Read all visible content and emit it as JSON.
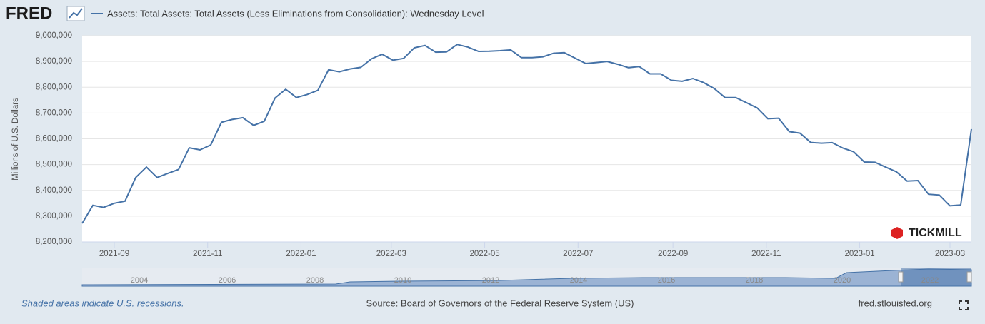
{
  "chart_data": {
    "type": "line",
    "logo": "FRED",
    "watermark": "TICKMILL",
    "y_label": "Millions of U.S. Dollars",
    "note": "Shaded areas indicate U.S. recessions.",
    "source": "Source: Board of Governors of the Federal Reserve System (US)",
    "site": "fred.stlouisfed.org",
    "navigator_labels": [
      "2004",
      "2006",
      "2008",
      "2010",
      "2012",
      "2014",
      "2016",
      "2018",
      "2020",
      "2022"
    ],
    "x": [
      "2021-08-11",
      "2021-08-18",
      "2021-08-25",
      "2021-09-01",
      "2021-09-08",
      "2021-09-15",
      "2021-09-22",
      "2021-09-29",
      "2021-10-06",
      "2021-10-13",
      "2021-10-20",
      "2021-10-27",
      "2021-11-03",
      "2021-11-10",
      "2021-11-17",
      "2021-11-24",
      "2021-12-01",
      "2021-12-08",
      "2021-12-15",
      "2021-12-22",
      "2021-12-29",
      "2022-01-05",
      "2022-01-12",
      "2022-01-19",
      "2022-01-26",
      "2022-02-02",
      "2022-02-09",
      "2022-02-16",
      "2022-02-23",
      "2022-03-02",
      "2022-03-09",
      "2022-03-16",
      "2022-03-23",
      "2022-03-30",
      "2022-04-06",
      "2022-04-13",
      "2022-04-20",
      "2022-04-27",
      "2022-05-04",
      "2022-05-11",
      "2022-05-18",
      "2022-05-25",
      "2022-06-01",
      "2022-06-08",
      "2022-06-15",
      "2022-06-22",
      "2022-06-29",
      "2022-07-06",
      "2022-07-13",
      "2022-07-20",
      "2022-07-27",
      "2022-08-03",
      "2022-08-10",
      "2022-08-17",
      "2022-08-24",
      "2022-08-31",
      "2022-09-07",
      "2022-09-14",
      "2022-09-21",
      "2022-09-28",
      "2022-10-05",
      "2022-10-12",
      "2022-10-19",
      "2022-10-26",
      "2022-11-02",
      "2022-11-09",
      "2022-11-16",
      "2022-11-23",
      "2022-11-30",
      "2022-12-07",
      "2022-12-14",
      "2022-12-21",
      "2022-12-28",
      "2023-01-04",
      "2023-01-11",
      "2023-01-18",
      "2023-01-25",
      "2023-02-01",
      "2023-02-08",
      "2023-02-15",
      "2023-02-22",
      "2023-03-01",
      "2023-03-08",
      "2023-03-15"
    ],
    "series": [
      {
        "name": "Assets: Total Assets: Total Assets (Less Eliminations from Consolidation): Wednesday Level",
        "color": "#4572a7",
        "values": [
          8272000,
          8342000,
          8334000,
          8350000,
          8358000,
          8450000,
          8490000,
          8450000,
          8466000,
          8481000,
          8565000,
          8557000,
          8576000,
          8664000,
          8675000,
          8682000,
          8652000,
          8668000,
          8758000,
          8792000,
          8760000,
          8772000,
          8788000,
          8868000,
          8860000,
          8871000,
          8877000,
          8910000,
          8928000,
          8905000,
          8912000,
          8953000,
          8962000,
          8936000,
          8937000,
          8966000,
          8956000,
          8939000,
          8940000,
          8942000,
          8945000,
          8915000,
          8915000,
          8918000,
          8932000,
          8934000,
          8913000,
          8892000,
          8896000,
          8900000,
          8889000,
          8876000,
          8880000,
          8852000,
          8852000,
          8827000,
          8823000,
          8834000,
          8818000,
          8795000,
          8760000,
          8760000,
          8740000,
          8720000,
          8678000,
          8680000,
          8628000,
          8622000,
          8586000,
          8583000,
          8585000,
          8564000,
          8550000,
          8510000,
          8509000,
          8490000,
          8472000,
          8436000,
          8438000,
          8385000,
          8382000,
          8340000,
          8343000,
          8638000
        ]
      }
    ],
    "xlim": [
      "2021-08-11",
      "2023-03-15"
    ],
    "xticks": [
      "2021-09",
      "2021-11",
      "2022-01",
      "2022-03",
      "2022-05",
      "2022-07",
      "2022-09",
      "2022-11",
      "2023-01",
      "2023-03"
    ],
    "ylim": [
      8200000,
      9000000
    ],
    "yticks": [
      {
        "value": 8200000,
        "label": "8,200,000"
      },
      {
        "value": 8300000,
        "label": "8,300,000"
      },
      {
        "value": 8400000,
        "label": "8,400,000"
      },
      {
        "value": 8500000,
        "label": "8,500,000"
      },
      {
        "value": 8600000,
        "label": "8,600,000"
      },
      {
        "value": 8700000,
        "label": "8,700,000"
      },
      {
        "value": 8800000,
        "label": "8,800,000"
      },
      {
        "value": 8900000,
        "label": "8,900,000"
      },
      {
        "value": 9000000,
        "label": "9,000,000"
      }
    ],
    "grid": true
  }
}
